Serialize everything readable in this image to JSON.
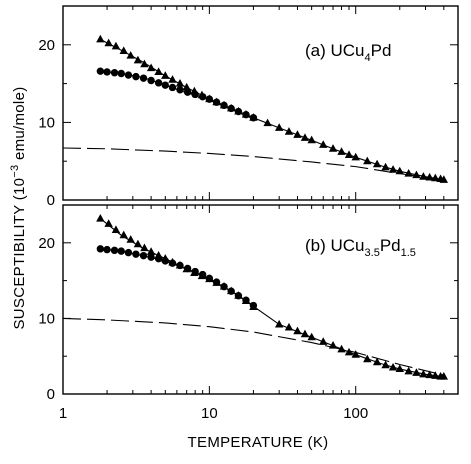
{
  "chart_data": {
    "type": "scatter",
    "xlabel": "TEMPERATURE  (K)",
    "ylabel_prefix": "SUSCEPTIBILITY (10",
    "ylabel_exp": "−3",
    "ylabel_suffix": " emu/mole)",
    "x_scale": "log",
    "xlim": [
      1,
      500
    ],
    "x_ticks": [
      1,
      10,
      100
    ],
    "x_tick_labels": [
      "1",
      "10",
      "100"
    ],
    "panels": [
      {
        "label_prefix": "(a)  UCu",
        "label_sub1": "4",
        "label_mid": "Pd",
        "label_sub2": "",
        "ylim": [
          0,
          25
        ],
        "y_ticks": [
          0,
          10,
          20
        ],
        "y_tick_labels": [
          "0",
          "10",
          "20"
        ],
        "series": [
          {
            "marker": "triangle",
            "x": [
              1.8,
              2.05,
              2.3,
              2.6,
              2.9,
              3.25,
              3.6,
              4.0,
              4.5,
              5.0,
              5.6,
              6.3,
              7.0,
              7.9,
              8.9,
              10,
              11.2,
              12.6,
              14.1,
              15.8,
              17.8,
              20,
              25,
              30,
              35,
              40,
              45,
              50,
              60,
              70,
              80,
              90,
              100,
              120,
              140,
              160,
              180,
              200,
              230,
              260,
              290,
              320,
              350,
              380,
              400
            ],
            "y": [
              20.7,
              20.2,
              19.8,
              19.2,
              18.6,
              18.0,
              17.5,
              17.0,
              16.5,
              16.0,
              15.5,
              15.0,
              14.5,
              14.0,
              13.5,
              13.0,
              12.6,
              12.2,
              11.8,
              11.4,
              11.0,
              10.6,
              9.9,
              9.3,
              8.8,
              8.4,
              8.0,
              7.7,
              7.1,
              6.6,
              6.2,
              5.8,
              5.5,
              5.0,
              4.6,
              4.2,
              3.9,
              3.7,
              3.4,
              3.2,
              3.0,
              2.9,
              2.8,
              2.7,
              2.6
            ]
          },
          {
            "marker": "circle",
            "x": [
              1.8,
              2.0,
              2.25,
              2.5,
              2.8,
              3.15,
              3.55,
              4.0,
              4.5,
              5.0,
              5.6,
              6.3,
              7.1,
              8.0,
              9.0,
              10,
              11.2,
              12.6,
              14.1,
              15.8,
              17.8,
              20
            ],
            "y": [
              16.6,
              16.5,
              16.4,
              16.3,
              16.1,
              15.9,
              15.7,
              15.4,
              15.1,
              14.8,
              14.5,
              14.2,
              13.9,
              13.6,
              13.3,
              13.0,
              12.6,
              12.2,
              11.8,
              11.4,
              11.0,
              10.6
            ]
          }
        ],
        "fit_line": {
          "x": [
            1.8,
            2.5,
            3.5,
            5,
            7,
            10,
            15,
            20,
            30,
            50,
            70,
            100,
            150,
            200,
            300,
            400
          ],
          "y": [
            20.7,
            19.3,
            17.8,
            16.0,
            14.5,
            13.0,
            11.6,
            10.6,
            9.3,
            7.7,
            6.6,
            5.5,
            4.4,
            3.7,
            3.0,
            2.6
          ]
        },
        "fit_curve": {
          "x": [
            1.8,
            2.5,
            3.5,
            5,
            7,
            10,
            15,
            20
          ],
          "y": [
            16.6,
            16.3,
            15.8,
            14.8,
            13.8,
            13.0,
            11.6,
            10.6
          ]
        },
        "dashed_line": {
          "x": [
            1,
            2,
            5,
            10,
            20,
            50,
            100,
            200,
            400
          ],
          "y": [
            6.7,
            6.6,
            6.3,
            6.0,
            5.6,
            4.9,
            4.3,
            3.4,
            2.6
          ]
        }
      },
      {
        "label_prefix": "(b)  UCu",
        "label_sub1": "3.5",
        "label_mid": "Pd",
        "label_sub2": "1.5",
        "ylim": [
          0,
          25
        ],
        "y_ticks": [
          0,
          10,
          20
        ],
        "y_tick_labels": [
          "0",
          "10",
          "20"
        ],
        "series": [
          {
            "marker": "triangle",
            "x": [
              1.8,
              2.05,
              2.3,
              2.6,
              2.9,
              3.25,
              3.6,
              4.0,
              4.5,
              5.0,
              5.6,
              6.3,
              7.0,
              7.9,
              8.9,
              10,
              11.2,
              12.6,
              14.1,
              15.8,
              17.8,
              20,
              30,
              35,
              40,
              45,
              50,
              60,
              70,
              80,
              90,
              100,
              120,
              140,
              160,
              180,
              200,
              230,
              260,
              290,
              320,
              350,
              380,
              400
            ],
            "y": [
              23.2,
              22.5,
              21.7,
              21.0,
              20.4,
              19.8,
              19.3,
              18.8,
              18.3,
              17.9,
              17.4,
              17.0,
              16.5,
              16.0,
              15.6,
              15.2,
              14.7,
              14.2,
              13.6,
              13.0,
              12.3,
              11.5,
              9.2,
              8.8,
              8.3,
              7.9,
              7.5,
              6.9,
              6.4,
              5.9,
              5.5,
              5.2,
              4.6,
              4.2,
              3.8,
              3.5,
              3.3,
              3.0,
              2.8,
              2.6,
              2.5,
              2.4,
              2.3,
              2.3
            ]
          },
          {
            "marker": "circle",
            "x": [
              1.8,
              2.0,
              2.25,
              2.5,
              2.8,
              3.15,
              3.55,
              4.0,
              4.5,
              5.0,
              5.6,
              6.3,
              7.1,
              8.0,
              9.0,
              10,
              11.2,
              12.6,
              14.1,
              15.8,
              17.8,
              20
            ],
            "y": [
              19.2,
              19.1,
              19.0,
              18.9,
              18.7,
              18.5,
              18.3,
              18.1,
              17.9,
              17.6,
              17.3,
              17.0,
              16.6,
              16.2,
              15.8,
              15.3,
              14.8,
              14.2,
              13.6,
              13.0,
              12.4,
              11.7
            ]
          }
        ],
        "fit_line": {
          "x": [
            1.8,
            2.5,
            3.5,
            5,
            7,
            10,
            15,
            20,
            30,
            50,
            70,
            100,
            150,
            200,
            300,
            400
          ],
          "y": [
            23.2,
            21.0,
            19.3,
            17.9,
            16.5,
            15.2,
            13.3,
            11.6,
            9.2,
            7.5,
            6.4,
            5.2,
            4.0,
            3.3,
            2.6,
            2.3
          ]
        },
        "fit_curve": {
          "x": [
            1.8,
            2.5,
            3.5,
            5,
            7,
            10,
            15,
            20
          ],
          "y": [
            19.2,
            18.9,
            18.3,
            17.6,
            16.6,
            15.3,
            13.3,
            11.7
          ]
        },
        "dashed_line": {
          "x": [
            1,
            2,
            5,
            10,
            20,
            50,
            100,
            200,
            400
          ],
          "y": [
            10.0,
            9.8,
            9.4,
            8.9,
            8.2,
            6.8,
            5.5,
            3.9,
            2.5
          ]
        }
      }
    ]
  }
}
